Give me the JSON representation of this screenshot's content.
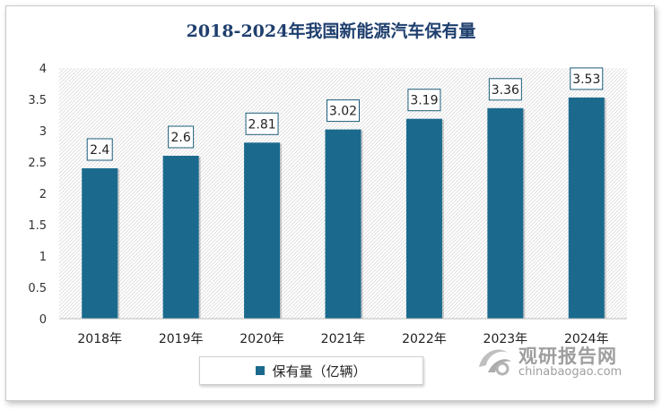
{
  "chart_data": {
    "type": "bar",
    "title": "2018-2024年我国新能源汽车保有量",
    "categories": [
      "2018年",
      "2019年",
      "2020年",
      "2021年",
      "2022年",
      "2023年",
      "2024年"
    ],
    "series": [
      {
        "name": "保有量（亿辆）",
        "values": [
          2.4,
          2.6,
          2.81,
          3.02,
          3.19,
          3.36,
          3.53
        ]
      }
    ],
    "data_labels": [
      "2.4",
      "2.6",
      "2.81",
      "3.02",
      "3.19",
      "3.36",
      "3.53"
    ],
    "y_ticks": [
      "0",
      "0.5",
      "1",
      "1.5",
      "2",
      "2.5",
      "3",
      "3.5",
      "4"
    ],
    "ylim": [
      0,
      4
    ],
    "xlabel": "",
    "ylabel": "",
    "grid": false,
    "legend_position": "bottom",
    "bar_color": "#1b6a8e"
  },
  "watermark": {
    "name": "观研报告网",
    "url": "chinabaogao.com"
  }
}
